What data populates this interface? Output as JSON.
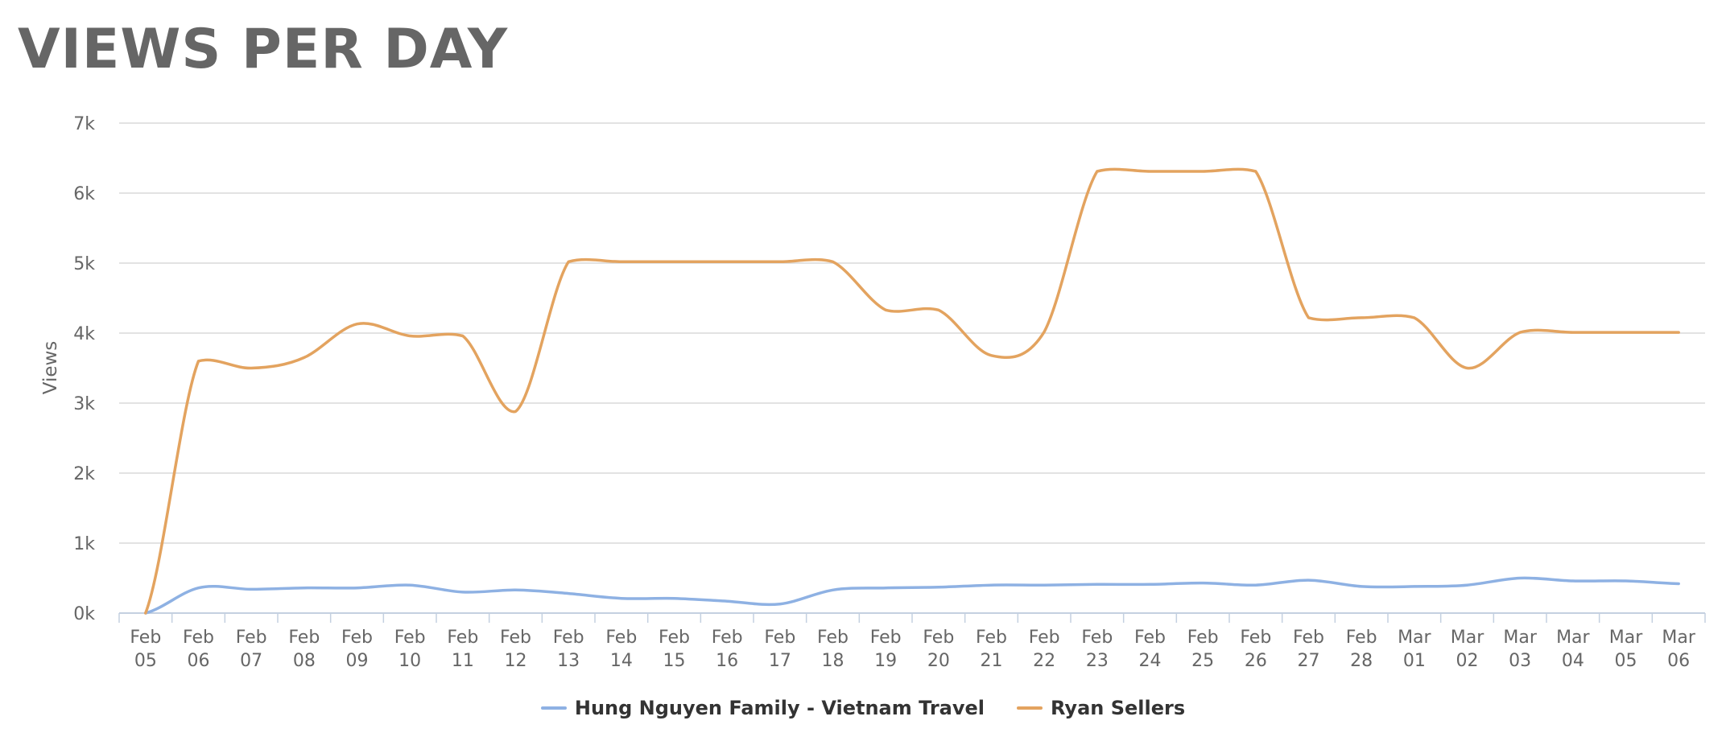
{
  "title": "VIEWS PER DAY",
  "chart_data": {
    "type": "line",
    "ylabel": "Views",
    "xlabel": "",
    "ylim": [
      0,
      7000
    ],
    "yticks": [
      "0k",
      "1k",
      "2k",
      "3k",
      "4k",
      "5k",
      "6k",
      "7k"
    ],
    "grid": true,
    "legend_position": "bottom-center",
    "categories": [
      [
        "Feb",
        "05"
      ],
      [
        "Feb",
        "06"
      ],
      [
        "Feb",
        "07"
      ],
      [
        "Feb",
        "08"
      ],
      [
        "Feb",
        "09"
      ],
      [
        "Feb",
        "10"
      ],
      [
        "Feb",
        "11"
      ],
      [
        "Feb",
        "12"
      ],
      [
        "Feb",
        "13"
      ],
      [
        "Feb",
        "14"
      ],
      [
        "Feb",
        "15"
      ],
      [
        "Feb",
        "16"
      ],
      [
        "Feb",
        "17"
      ],
      [
        "Feb",
        "18"
      ],
      [
        "Feb",
        "19"
      ],
      [
        "Feb",
        "20"
      ],
      [
        "Feb",
        "21"
      ],
      [
        "Feb",
        "22"
      ],
      [
        "Feb",
        "23"
      ],
      [
        "Feb",
        "24"
      ],
      [
        "Feb",
        "25"
      ],
      [
        "Feb",
        "26"
      ],
      [
        "Feb",
        "27"
      ],
      [
        "Feb",
        "28"
      ],
      [
        "Mar",
        "01"
      ],
      [
        "Mar",
        "02"
      ],
      [
        "Mar",
        "03"
      ],
      [
        "Mar",
        "04"
      ],
      [
        "Mar",
        "05"
      ],
      [
        "Mar",
        "06"
      ]
    ],
    "series": [
      {
        "name": "Hung Nguyen Family - Vietnam Travel",
        "color": "#8eb1e3",
        "values": [
          0,
          360,
          340,
          360,
          360,
          400,
          300,
          330,
          280,
          210,
          210,
          170,
          130,
          330,
          360,
          370,
          400,
          400,
          410,
          410,
          430,
          400,
          470,
          380,
          380,
          400,
          500,
          460,
          460,
          420
        ]
      },
      {
        "name": "Ryan Sellers",
        "color": "#e3a35f",
        "values": [
          0,
          3600,
          3500,
          3650,
          4130,
          3960,
          3960,
          2880,
          5020,
          5020,
          5020,
          5020,
          5020,
          5020,
          4330,
          4330,
          3680,
          4020,
          6310,
          6310,
          6310,
          6310,
          4220,
          4220,
          4220,
          3500,
          4010,
          4010,
          4010,
          4010
        ]
      }
    ]
  }
}
